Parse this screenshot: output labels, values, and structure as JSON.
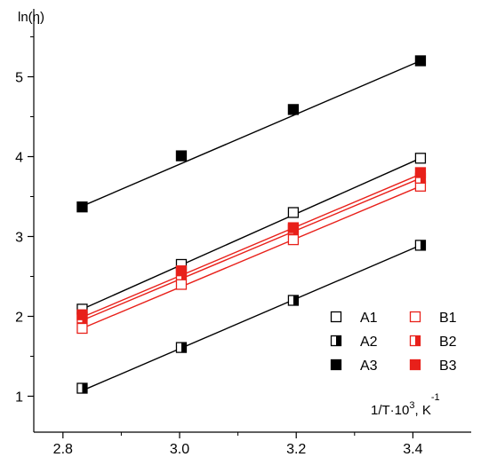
{
  "chart_data": {
    "type": "scatter",
    "ylabel": "ln(η)",
    "xlabel_main": "1/T·10",
    "xlabel_sup": "3",
    "xlabel_unit": ", K",
    "xlabel_unit_sup": "-1",
    "xlim": [
      2.75,
      3.5
    ],
    "ylim": [
      0.55,
      5.85
    ],
    "xticks": [
      2.8,
      3.0,
      3.2,
      3.4
    ],
    "xtick_labels": [
      "2.8",
      "3.0",
      "3.2",
      "3.4"
    ],
    "yticks": [
      1,
      2,
      3,
      4,
      5
    ],
    "ytick_labels": [
      "1",
      "2",
      "3",
      "4",
      "5"
    ],
    "grid": false,
    "legend_position": "bottom-right",
    "x": [
      2.833,
      3.003,
      3.195,
      3.413
    ],
    "series": [
      {
        "name": "A1",
        "color": "#000000",
        "marker": "open",
        "values": [
          2.09,
          2.65,
          3.3,
          3.98
        ],
        "fit": [
          2.09,
          3.98
        ]
      },
      {
        "name": "A2",
        "color": "#000000",
        "marker": "half",
        "values": [
          1.1,
          1.61,
          2.2,
          2.89
        ],
        "fit": [
          1.07,
          2.89
        ]
      },
      {
        "name": "A3",
        "color": "#000000",
        "marker": "filled",
        "values": [
          3.37,
          4.01,
          4.59,
          5.2
        ],
        "fit": [
          3.38,
          5.2
        ]
      },
      {
        "name": "B1",
        "color": "#e8201a",
        "marker": "open",
        "values": [
          1.85,
          2.4,
          2.96,
          3.63
        ],
        "fit": [
          1.85,
          3.63
        ]
      },
      {
        "name": "B2",
        "color": "#e8201a",
        "marker": "half",
        "values": [
          1.98,
          2.52,
          3.09,
          3.73
        ],
        "fit": [
          1.95,
          3.73
        ]
      },
      {
        "name": "B3",
        "color": "#e8201a",
        "marker": "filled",
        "values": [
          2.02,
          2.57,
          3.11,
          3.8
        ],
        "fit": [
          1.99,
          3.78
        ]
      }
    ]
  }
}
